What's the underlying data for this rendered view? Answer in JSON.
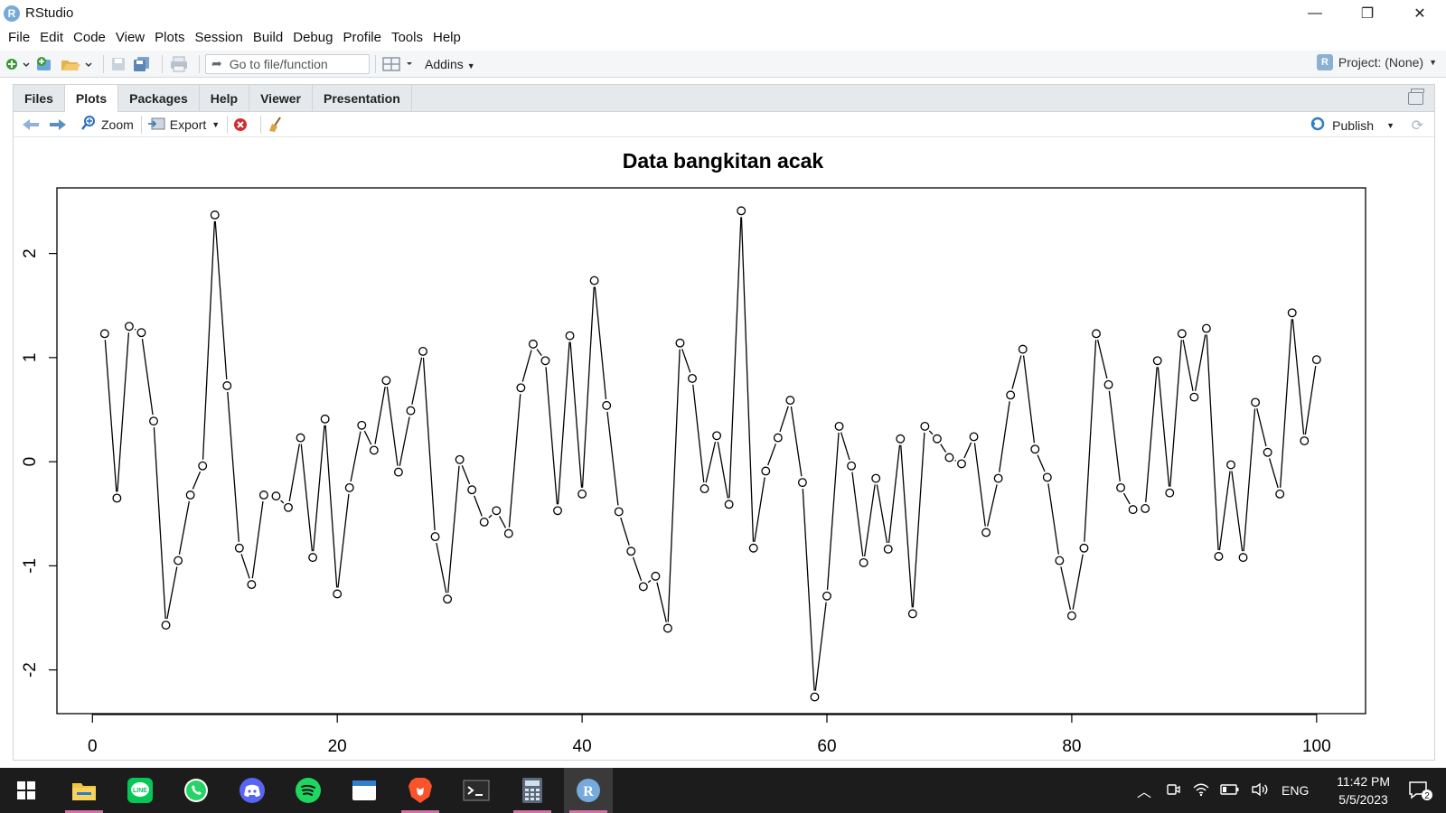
{
  "window": {
    "title": "RStudio",
    "logo_letter": "R",
    "min": "—",
    "restore": "❐",
    "close": "✕"
  },
  "menu": [
    "File",
    "Edit",
    "Code",
    "View",
    "Plots",
    "Session",
    "Build",
    "Debug",
    "Profile",
    "Tools",
    "Help"
  ],
  "toolbar": {
    "goto_placeholder": "Go to file/function",
    "addins_label": "Addins",
    "project_label": "Project: (None)"
  },
  "pane": {
    "tabs": [
      "Files",
      "Plots",
      "Packages",
      "Help",
      "Viewer",
      "Presentation"
    ],
    "active_tab": "Plots",
    "zoom_label": "Zoom",
    "export_label": "Export",
    "publish_label": "Publish"
  },
  "chart_data": {
    "type": "line",
    "title": "Data bangkitan acak",
    "xlabel": "",
    "ylabel": "",
    "xlim": [
      -2.9,
      104.0
    ],
    "ylim": [
      -2.42,
      2.63
    ],
    "xticks": [
      0,
      20,
      40,
      60,
      80,
      100
    ],
    "yticks": [
      -2,
      -1,
      0,
      1,
      2
    ],
    "markers": "open-circle",
    "line_color": "#000000",
    "series": [
      {
        "x": [
          1,
          2,
          3,
          4,
          5,
          6,
          7,
          8,
          9,
          10,
          11,
          12,
          13,
          14,
          15,
          16,
          17,
          18,
          19,
          20,
          21,
          22,
          23,
          24,
          25,
          26,
          27,
          28,
          29,
          30,
          31,
          32,
          33,
          34,
          35,
          36,
          37,
          38,
          39,
          40,
          41,
          42,
          43,
          44,
          45,
          46,
          47,
          48,
          49,
          50,
          51,
          52,
          53,
          54,
          55,
          56,
          57,
          58,
          59,
          60,
          61,
          62,
          63,
          64,
          65,
          66,
          67,
          68,
          69,
          70,
          71,
          72,
          73,
          74,
          75,
          76,
          77,
          78,
          79,
          80,
          81,
          82,
          83,
          84,
          85,
          86,
          87,
          88,
          89,
          90,
          91,
          92,
          93,
          94,
          95,
          96,
          97,
          98,
          99,
          100
        ],
        "values": [
          1.23,
          -0.35,
          1.3,
          1.24,
          0.39,
          -1.57,
          -0.95,
          -0.32,
          -0.04,
          2.37,
          0.73,
          -0.83,
          -1.18,
          -0.32,
          -0.33,
          -0.44,
          0.23,
          -0.92,
          0.41,
          -1.27,
          -0.25,
          0.35,
          0.11,
          0.78,
          -0.1,
          0.49,
          1.06,
          -0.72,
          -1.32,
          0.02,
          -0.27,
          -0.58,
          -0.47,
          -0.69,
          0.71,
          1.13,
          0.97,
          -0.47,
          1.21,
          -0.31,
          1.74,
          0.54,
          -0.48,
          -0.86,
          -1.2,
          -1.1,
          -1.6,
          1.14,
          0.8,
          -0.26,
          0.25,
          -0.41,
          2.41,
          -0.83,
          -0.09,
          0.23,
          0.59,
          -0.2,
          -2.26,
          -1.29,
          0.34,
          -0.04,
          -0.97,
          -0.16,
          -0.84,
          0.22,
          -1.46,
          0.34,
          0.22,
          0.04,
          -0.02,
          0.24,
          -0.68,
          -0.16,
          0.64,
          1.08,
          0.12,
          -0.15,
          -0.95,
          -1.48,
          -0.83,
          1.23,
          0.74,
          -0.25,
          -0.46,
          -0.45,
          0.97,
          -0.3,
          1.23,
          0.62,
          1.28,
          -0.91,
          -0.03,
          -0.92,
          0.57,
          0.09,
          -0.31,
          1.43,
          0.2,
          0.98
        ]
      }
    ]
  },
  "taskbar": {
    "apps": [
      "windows-start",
      "file-explorer",
      "line",
      "whatsapp",
      "discord",
      "spotify",
      "notepad",
      "brave",
      "terminal",
      "calculator",
      "rstudio"
    ],
    "lang": "ENG",
    "time": "11:42 PM",
    "date": "5/5/2023",
    "notif_count": "2"
  }
}
